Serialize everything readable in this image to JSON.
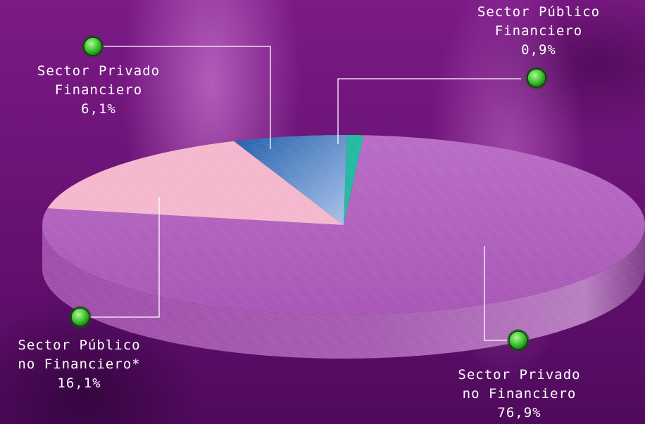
{
  "chart_data": {
    "type": "pie",
    "title": "",
    "slices": [
      {
        "name": "Sector Público Financiero",
        "lines": [
          "Sector Público",
          "Financiero"
        ],
        "label": "0,9%",
        "value": 0.9,
        "color": "#1fb8a0"
      },
      {
        "name": "Sector Privado no Financiero",
        "lines": [
          "Sector Privado",
          "no Financiero"
        ],
        "label": "76,9%",
        "value": 76.9,
        "color": "#b465c2"
      },
      {
        "name": "Sector Público no Financiero*",
        "lines": [
          "Sector Público",
          "no Financiero*"
        ],
        "label": "16,1%",
        "value": 16.1,
        "color": "#f4b6cc"
      },
      {
        "name": "Sector Privado Financiero",
        "lines": [
          "Sector Privado",
          "Financiero"
        ],
        "label": "6,1%",
        "value": 6.1,
        "color": "#2f6db5"
      }
    ],
    "legend": "none",
    "marker_color": "#3fcf3a"
  }
}
